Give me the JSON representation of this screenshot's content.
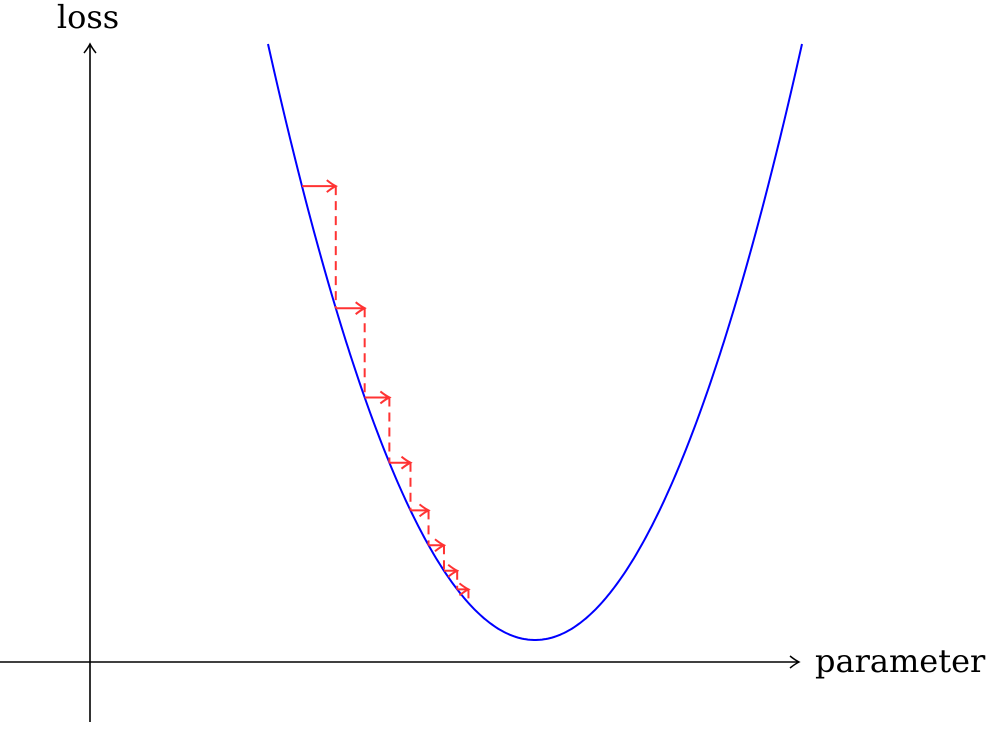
{
  "axes": {
    "y_label": "loss",
    "x_label": "parameter"
  },
  "curve": {
    "color": "#0000ff"
  },
  "descent_steps": {
    "count": 8,
    "color": "#ff3333"
  }
}
